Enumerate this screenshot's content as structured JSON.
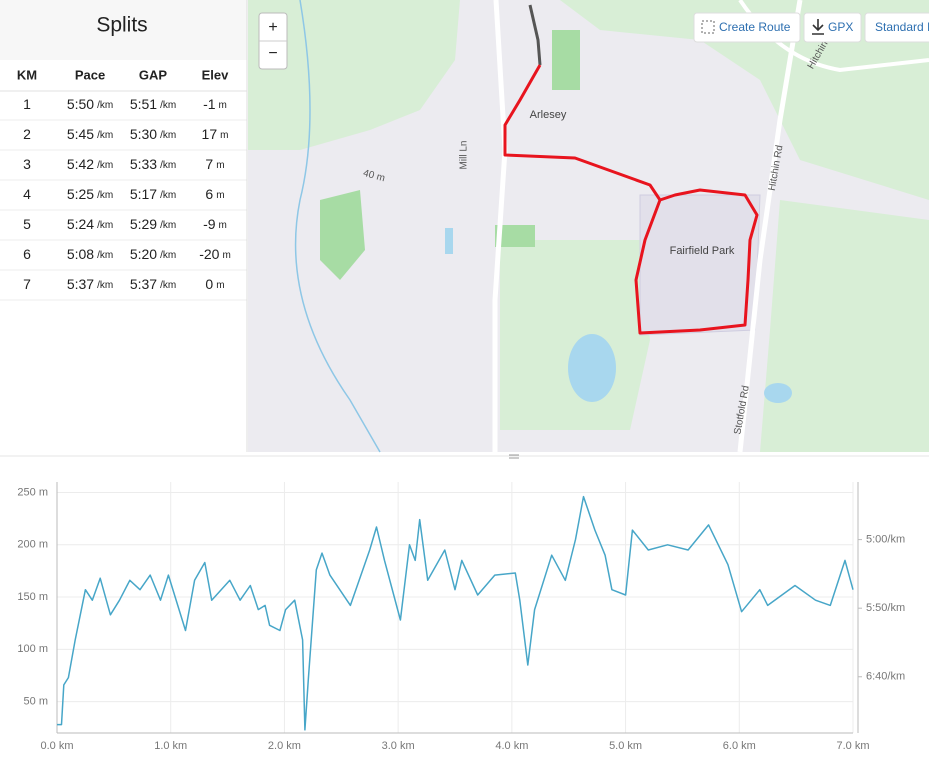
{
  "splits": {
    "title": "Splits",
    "headers": [
      "KM",
      "Pace",
      "GAP",
      "Elev"
    ],
    "pace_unit": "/km",
    "elev_unit": "m",
    "rows": [
      [
        "1",
        "5:50",
        "5:51",
        "-1"
      ],
      [
        "2",
        "5:45",
        "5:30",
        "17"
      ],
      [
        "3",
        "5:42",
        "5:33",
        "7"
      ],
      [
        "4",
        "5:25",
        "5:17",
        "6"
      ],
      [
        "5",
        "5:24",
        "5:29",
        "-9"
      ],
      [
        "6",
        "5:08",
        "5:20",
        "-20"
      ],
      [
        "7",
        "5:37",
        "5:37",
        "0"
      ]
    ]
  },
  "map": {
    "zoom_in": "+",
    "zoom_out": "−",
    "buttons": [
      "Create Route",
      "GPX",
      "Standard I"
    ],
    "labels": [
      "Arlesey",
      "Fairfield Park"
    ],
    "roads": [
      "Mill Ln",
      "Hitchin Rd",
      "Stotfold Rd",
      "Hitchin",
      "40 m"
    ]
  },
  "chart_data": {
    "type": "line",
    "x": [
      0,
      0.04,
      0.06,
      0.1,
      0.16,
      0.25,
      0.31,
      0.38,
      0.47,
      0.55,
      0.64,
      0.73,
      0.82,
      0.91,
      0.98,
      1.13,
      1.21,
      1.3,
      1.36,
      1.52,
      1.61,
      1.7,
      1.77,
      1.83,
      1.87,
      1.96,
      2.01,
      2.09,
      2.16,
      2.18,
      2.21,
      2.28,
      2.33,
      2.4,
      2.58,
      2.75,
      2.81,
      2.88,
      3.02,
      3.1,
      3.15,
      3.19,
      3.26,
      3.41,
      3.5,
      3.56,
      3.7,
      3.85,
      4.03,
      4.07,
      4.14,
      4.2,
      4.35,
      4.47,
      4.56,
      4.63,
      4.73,
      4.82,
      4.88,
      5.0,
      5.06,
      5.2,
      5.37,
      5.55,
      5.73,
      5.9,
      6.02,
      6.18,
      6.25,
      6.49,
      6.67,
      6.8,
      6.93,
      7.0
    ],
    "series": [
      {
        "color": "#47a6c8",
        "values": [
          28,
          28,
          66,
          73,
          109,
          157,
          147,
          168,
          133,
          147,
          166,
          157,
          171,
          147,
          171,
          118,
          166,
          183,
          147,
          166,
          147,
          161,
          138,
          142,
          123,
          118,
          138,
          147,
          109,
          23,
          71,
          176,
          192,
          171,
          142,
          195,
          217,
          185,
          128,
          200,
          185,
          224,
          166,
          195,
          157,
          185,
          152,
          171,
          173,
          147,
          85,
          138,
          190,
          166,
          205,
          246,
          214,
          190,
          157,
          152,
          214,
          195,
          200,
          195,
          219,
          181,
          136,
          157,
          142,
          161,
          147,
          142,
          185,
          157
        ]
      }
    ],
    "xlim": [
      0,
      7
    ],
    "xticks": [
      {
        "value": 0,
        "label": "0.0 km"
      },
      {
        "value": 1,
        "label": "1.0 km"
      },
      {
        "value": 2,
        "label": "2.0 km"
      },
      {
        "value": 3,
        "label": "3.0 km"
      },
      {
        "value": 4,
        "label": "4.0 km"
      },
      {
        "value": 5,
        "label": "5.0 km"
      },
      {
        "value": 6,
        "label": "6.0 km"
      },
      {
        "value": 7,
        "label": "7.0 km"
      }
    ],
    "ylim": [
      20,
      260
    ],
    "yticks": [
      {
        "value": 50,
        "label": "50 m"
      },
      {
        "value": 100,
        "label": "100 m"
      },
      {
        "value": 150,
        "label": "150 m"
      },
      {
        "value": 200,
        "label": "200 m"
      },
      {
        "value": 250,
        "label": "250 m"
      }
    ],
    "y2lim": [
      441,
      258
    ],
    "y2ticks": [
      {
        "value": 300,
        "label": "5:00/km"
      },
      {
        "value": 350,
        "label": "5:50/km"
      },
      {
        "value": 400,
        "label": "6:40/km"
      }
    ],
    "grid": true
  }
}
